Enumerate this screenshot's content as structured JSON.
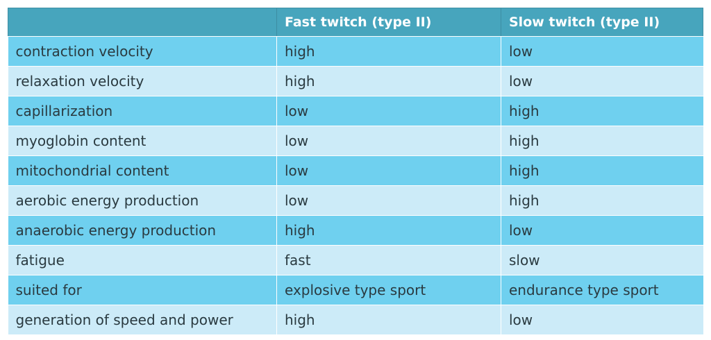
{
  "table": {
    "headers": [
      "",
      "Fast twitch (type II)",
      "Slow twitch (type II)"
    ],
    "rows": [
      [
        "contraction velocity",
        "high",
        "low"
      ],
      [
        "relaxation velocity",
        "high",
        "low"
      ],
      [
        "capillarization",
        "low",
        "high"
      ],
      [
        "myoglobin content",
        "low",
        "high"
      ],
      [
        "mitochondrial content",
        "low",
        "high"
      ],
      [
        "aerobic energy production",
        "low",
        "high"
      ],
      [
        "anaerobic energy production",
        "high",
        "low"
      ],
      [
        "fatigue",
        "fast",
        "slow"
      ],
      [
        "suited for",
        "explosive type sport",
        "endurance type sport"
      ],
      [
        "generation of speed and power",
        "high",
        "low"
      ]
    ]
  },
  "colors": {
    "header_bg": "#47a5bd",
    "row_dark": "#6fd0ef",
    "row_light": "#ccebf8",
    "text": "#2a3a40"
  }
}
